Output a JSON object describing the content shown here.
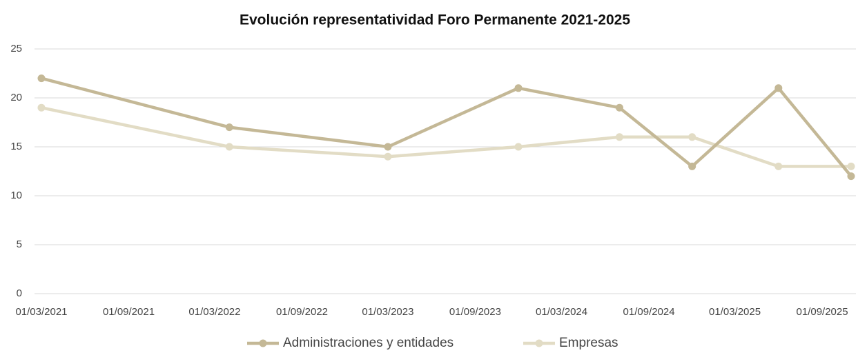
{
  "chart_data": {
    "type": "line",
    "title": "Evolución representatividad Foro Permanente 2021-2025",
    "x": [
      "2021-03-01",
      "2022-04-01",
      "2023-03-01",
      "2023-12-01",
      "2024-07-01",
      "2024-12-01",
      "2025-06-01",
      "2025-11-01"
    ],
    "series": [
      {
        "name": "Administraciones y entidades",
        "color": "#c4b896",
        "values": [
          22,
          17,
          15,
          21,
          19,
          13,
          21,
          12
        ]
      },
      {
        "name": "Empresas",
        "color": "#e2dcc5",
        "values": [
          19,
          15,
          14,
          15,
          16,
          16,
          13,
          13
        ]
      }
    ],
    "xlim": [
      "2021-03-01",
      "2025-11-01"
    ],
    "xticks": [
      {
        "value": "2021-03-01",
        "label": "01/03/2021"
      },
      {
        "value": "2021-09-01",
        "label": "01/09/2021"
      },
      {
        "value": "2022-03-01",
        "label": "01/03/2022"
      },
      {
        "value": "2022-09-01",
        "label": "01/09/2022"
      },
      {
        "value": "2023-03-01",
        "label": "01/03/2023"
      },
      {
        "value": "2023-09-01",
        "label": "01/09/2023"
      },
      {
        "value": "2024-03-01",
        "label": "01/03/2024"
      },
      {
        "value": "2024-09-01",
        "label": "01/09/2024"
      },
      {
        "value": "2025-03-01",
        "label": "01/03/2025"
      },
      {
        "value": "2025-09-01",
        "label": "01/09/2025"
      }
    ],
    "ylim": [
      0,
      25
    ],
    "yticks": [
      0,
      5,
      10,
      15,
      20,
      25
    ],
    "grid": true,
    "legend": "bottom"
  }
}
